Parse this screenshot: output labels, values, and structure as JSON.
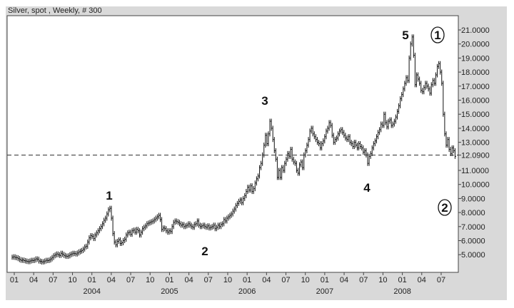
{
  "chart_data": {
    "type": "bar",
    "subtype": "weekly price bars",
    "title": "Silver, spot , Weekly, # 300",
    "first_bar": "2003-01",
    "close": [
      4.82,
      4.85,
      4.8,
      4.78,
      4.72,
      4.65,
      4.6,
      4.62,
      4.58,
      4.55,
      4.52,
      4.5,
      4.55,
      4.6,
      4.58,
      4.62,
      4.7,
      4.68,
      4.55,
      4.52,
      4.48,
      4.5,
      4.55,
      4.6,
      4.58,
      4.62,
      4.7,
      4.8,
      4.92,
      4.98,
      5.05,
      5.0,
      4.95,
      5.1,
      5.02,
      4.95,
      4.9,
      4.88,
      4.92,
      5.0,
      5.05,
      5.1,
      5.08,
      5.05,
      5.12,
      5.2,
      5.25,
      5.3,
      5.4,
      5.55,
      5.6,
      5.9,
      6.2,
      6.35,
      6.3,
      6.15,
      6.4,
      6.55,
      6.7,
      6.85,
      7.0,
      7.2,
      7.45,
      7.6,
      7.9,
      8.2,
      8.3,
      7.6,
      6.5,
      5.9,
      5.7,
      5.95,
      6.05,
      5.8,
      5.85,
      6.0,
      6.1,
      6.4,
      6.55,
      6.6,
      6.45,
      6.7,
      6.75,
      6.6,
      6.8,
      6.7,
      6.4,
      6.6,
      6.85,
      6.95,
      7.05,
      7.2,
      7.25,
      7.3,
      7.35,
      7.4,
      7.5,
      7.6,
      7.7,
      7.8,
      7.5,
      6.8,
      6.9,
      6.85,
      6.7,
      6.6,
      6.7,
      6.65,
      7.0,
      7.3,
      7.4,
      7.35,
      7.3,
      7.2,
      7.1,
      7.15,
      7.0,
      7.05,
      7.1,
      7.2,
      7.1,
      7.0,
      6.95,
      7.15,
      7.2,
      7.4,
      7.1,
      7.0,
      7.05,
      7.1,
      7.0,
      6.95,
      7.05,
      6.9,
      6.95,
      7.0,
      7.1,
      6.85,
      6.95,
      7.1,
      7.0,
      7.15,
      7.2,
      7.5,
      7.4,
      7.6,
      7.7,
      7.8,
      7.9,
      8.1,
      8.25,
      8.5,
      8.65,
      8.8,
      8.9,
      8.7,
      9.0,
      9.2,
      9.5,
      9.8,
      9.6,
      9.9,
      9.5,
      9.7,
      10.1,
      10.4,
      10.6,
      11.2,
      11.5,
      12.1,
      12.8,
      13.5,
      12.9,
      13.6,
      14.5,
      14.0,
      13.2,
      12.4,
      11.8,
      10.5,
      11.0,
      10.5,
      11.2,
      11.0,
      11.5,
      11.8,
      12.2,
      12.0,
      12.5,
      11.8,
      11.6,
      11.5,
      11.0,
      10.8,
      11.4,
      11.6,
      11.2,
      12.1,
      12.4,
      12.8,
      13.2,
      13.8,
      14.0,
      13.6,
      13.4,
      13.2,
      13.0,
      12.9,
      12.6,
      12.9,
      13.1,
      13.4,
      13.8,
      14.0,
      14.4,
      14.2,
      13.5,
      13.0,
      13.2,
      13.3,
      13.6,
      13.8,
      13.9,
      13.7,
      13.5,
      13.3,
      13.2,
      13.4,
      13.0,
      12.9,
      12.7,
      13.0,
      12.8,
      12.6,
      12.9,
      12.7,
      12.6,
      12.3,
      12.4,
      12.1,
      11.5,
      12.0,
      12.2,
      12.6,
      12.9,
      13.1,
      13.4,
      13.7,
      13.9,
      14.3,
      14.2,
      15.0,
      14.4,
      14.1,
      14.5,
      14.6,
      14.2,
      14.3,
      14.5,
      14.8,
      15.2,
      15.6,
      16.1,
      16.4,
      16.8,
      17.2,
      17.6,
      17.4,
      19.0,
      20.0,
      20.5,
      19.2,
      17.1,
      17.8,
      17.5,
      17.2,
      16.7,
      16.6,
      16.9,
      17.2,
      17.0,
      16.8,
      16.5,
      17.1,
      17.4,
      17.2,
      17.8,
      18.4,
      18.6,
      18.0,
      17.2,
      15.0,
      13.6,
      12.8,
      13.2,
      12.5,
      12.2,
      12.6,
      12.4,
      12.0
    ],
    "ylim": [
      4.2,
      22
    ],
    "y_ticks": [
      "21.0000",
      "20.0000",
      "19.0000",
      "18.0000",
      "17.0000",
      "16.0000",
      "15.0000",
      "14.0000",
      "13.0000",
      "12.0900",
      "11.0000",
      "10.0000",
      "9.0000",
      "8.0000",
      "7.0000",
      "6.0000",
      "5.0000"
    ],
    "y_tick_values": [
      21,
      20,
      19,
      18,
      17,
      16,
      15,
      14,
      13,
      12.09,
      11,
      10,
      9,
      8,
      7,
      6,
      5
    ],
    "x_month_ticks": [
      "01",
      "04",
      "07",
      "10",
      "01",
      "04",
      "07",
      "10",
      "01",
      "04",
      "07",
      "10",
      "01",
      "04",
      "07",
      "10",
      "01",
      "04",
      "07",
      "10",
      "01",
      "04",
      "07"
    ],
    "x_year_labels": [
      "2004",
      "2005",
      "2006",
      "2007",
      "2008"
    ],
    "horizontal_line": {
      "value": 12.09,
      "style": "dashed"
    },
    "wave_labels": [
      {
        "text": "1",
        "style": "plain"
      },
      {
        "text": "2",
        "style": "plain"
      },
      {
        "text": "3",
        "style": "plain"
      },
      {
        "text": "4",
        "style": "plain"
      },
      {
        "text": "5",
        "style": "plain"
      },
      {
        "text": "1",
        "style": "circled"
      },
      {
        "text": "2",
        "style": "circled"
      }
    ],
    "grid": false,
    "colors": {
      "bars": "#111111",
      "panel": "#d9d9d9",
      "plot_bg": "#ffffff"
    }
  }
}
